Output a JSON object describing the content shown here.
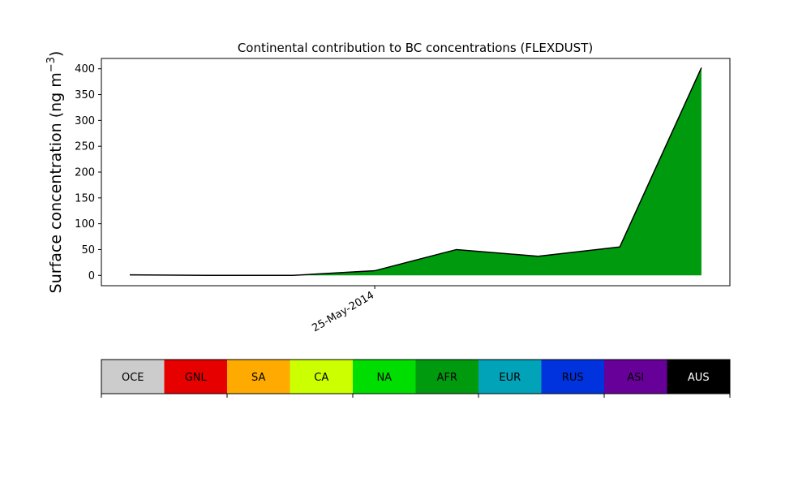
{
  "chart_data": {
    "type": "area",
    "title": "Continental contribution to BC concentrations (FLEXDUST)",
    "ylabel": "Surface concentration (ng m",
    "ylabel_unit_exp": "−3",
    "ylabel_close": ")",
    "xlabel": "",
    "ylim": [
      -20,
      420
    ],
    "yticks": [
      0,
      50,
      100,
      150,
      200,
      250,
      300,
      350,
      400
    ],
    "x_tick_labels": [
      {
        "label": "25-May-2014",
        "index": 3
      }
    ],
    "x": [
      0,
      1,
      2,
      3,
      4,
      5,
      6,
      7
    ],
    "series": [
      {
        "name": "AFR",
        "values": [
          1,
          0,
          0,
          9,
          50,
          37,
          55,
          402
        ],
        "color": "#009a0e"
      }
    ],
    "grid": false,
    "legend": {
      "placement": "bottom",
      "entries": [
        {
          "name": "OCE",
          "color": "#cccccc",
          "text_color": "#000000"
        },
        {
          "name": "GNL",
          "color": "#e60000",
          "text_color": "#000000"
        },
        {
          "name": "SA",
          "color": "#ffaa00",
          "text_color": "#000000"
        },
        {
          "name": "CA",
          "color": "#ccff00",
          "text_color": "#000000"
        },
        {
          "name": "NA",
          "color": "#00dd00",
          "text_color": "#000000"
        },
        {
          "name": "AFR",
          "color": "#009a0e",
          "text_color": "#000000"
        },
        {
          "name": "EUR",
          "color": "#00a3b8",
          "text_color": "#000000"
        },
        {
          "name": "RUS",
          "color": "#0033dd",
          "text_color": "#000000"
        },
        {
          "name": "ASI",
          "color": "#660099",
          "text_color": "#000000"
        },
        {
          "name": "AUS",
          "color": "#000000",
          "text_color": "#ffffff"
        }
      ]
    }
  }
}
